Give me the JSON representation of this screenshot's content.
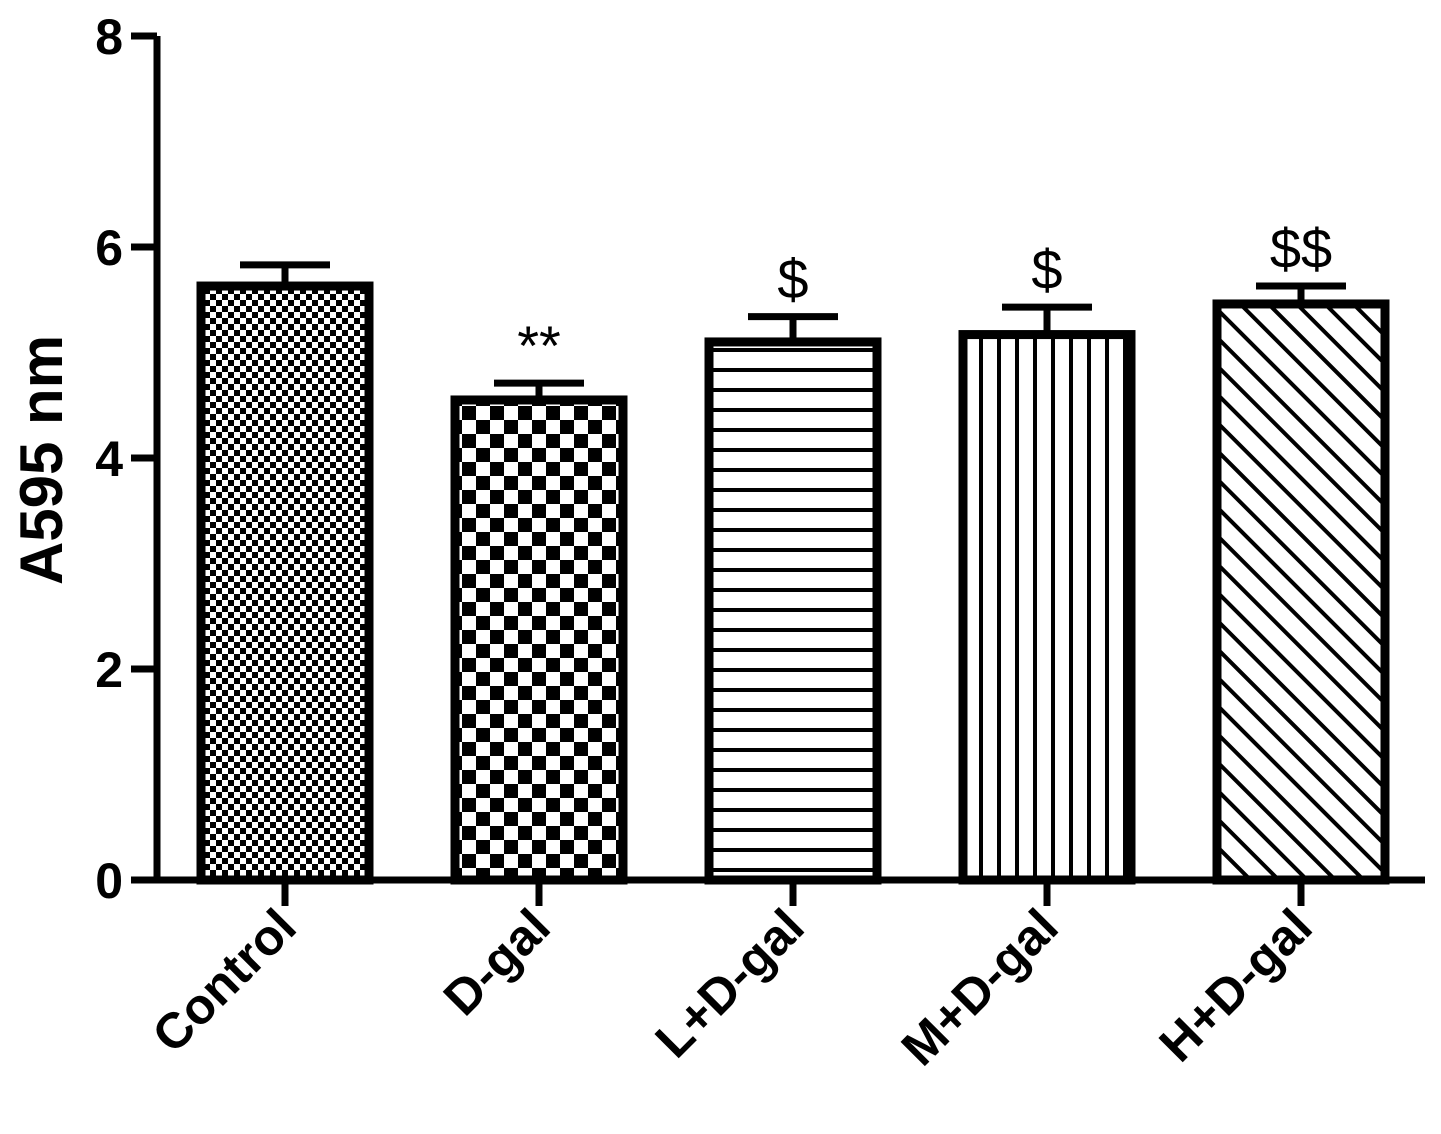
{
  "chart_data": {
    "type": "bar",
    "title": "",
    "xlabel": "",
    "ylabel": "A595 nm",
    "ylim": [
      0,
      8
    ],
    "yticks": [
      0,
      2,
      4,
      6,
      8
    ],
    "grid": false,
    "legend": "none",
    "categories": [
      "Control",
      "D-gal",
      "L+D-gal",
      "M+D-gal",
      "H+D-gal"
    ],
    "values": [
      5.63,
      4.55,
      5.1,
      5.17,
      5.46
    ],
    "errors": [
      0.2,
      0.16,
      0.24,
      0.26,
      0.17
    ],
    "annotations": [
      "",
      "**",
      "$",
      "$",
      "$$"
    ],
    "patterns": [
      "fine-checker",
      "coarse-checker",
      "horizontal-lines",
      "vertical-lines",
      "diagonal-lines"
    ]
  }
}
